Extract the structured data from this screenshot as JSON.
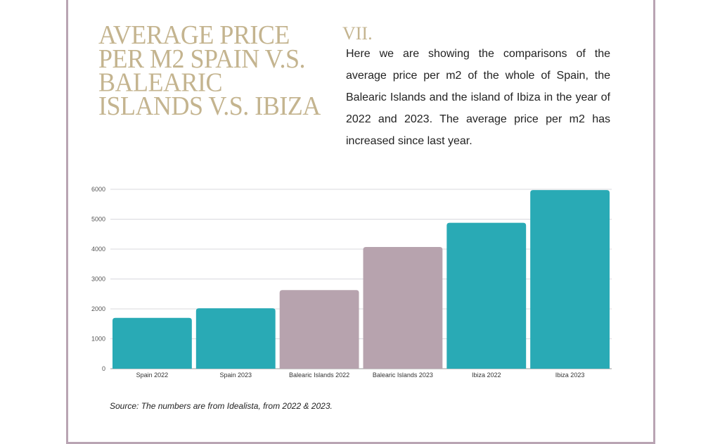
{
  "title": "Average price per m2 Spain v.s. Balearic Islands v.s. Ibiza",
  "section_number": "VII.",
  "description": "Here we are showing the comparisons of the average price per m2 of the whole of Spain, the Balearic Islands and the island of Ibiza in the year of 2022 and 2023. The average price per m2 has increased since last year.",
  "source": "Source: The numbers are from Idealista, from 2022 & 2023.",
  "colors": {
    "teal": "#29aab5",
    "mauve": "#b7a3ae",
    "gold": "#c4b48f",
    "frame": "#b9a4b3"
  },
  "chart_data": {
    "type": "bar",
    "categories": [
      "Spain 2022",
      "Spain 2023",
      "Balearic Islands 2022",
      "Balearic Islands 2023",
      "Ibiza 2022",
      "Ibiza 2023"
    ],
    "values": [
      1700,
      2020,
      2630,
      4070,
      4880,
      5975
    ],
    "bar_colors": [
      "#29aab5",
      "#29aab5",
      "#b7a3ae",
      "#b7a3ae",
      "#29aab5",
      "#29aab5"
    ],
    "ylim": [
      0,
      6000
    ],
    "yticks": [
      "0",
      "1000",
      "2000",
      "3000",
      "4000",
      "5000",
      "6000"
    ],
    "grid": true,
    "xlabel": "",
    "ylabel": ""
  }
}
